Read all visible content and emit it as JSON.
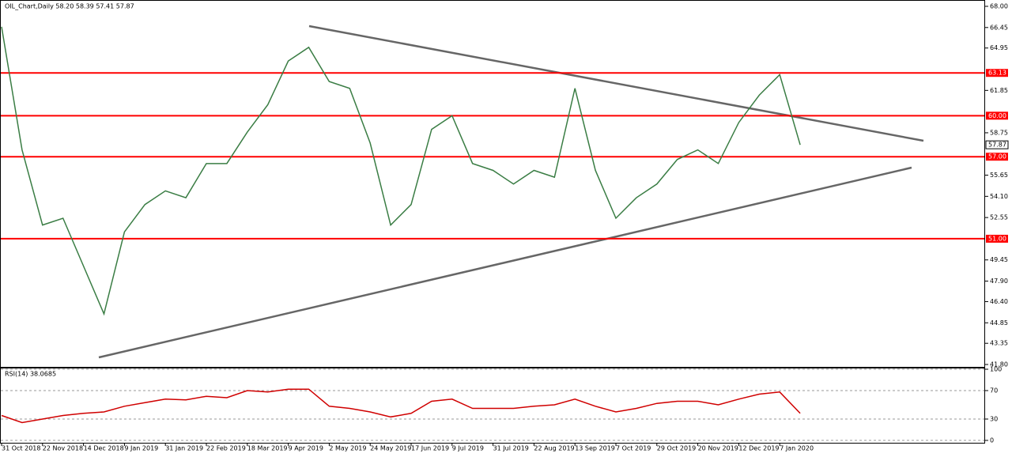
{
  "chart_data": [
    {
      "type": "line",
      "title": "OIL_Chart,Daily  58.20 58.39 57.41 57.87",
      "categories": [
        "31 Oct 2018",
        null,
        "22 Nov 2018",
        null,
        "14 Dec 2018",
        null,
        "9 Jan 2019",
        null,
        "31 Jan 2019",
        null,
        "22 Feb 2019",
        null,
        "18 Mar 2019",
        null,
        "9 Apr 2019",
        null,
        "2 May 2019",
        null,
        "24 May 2019",
        null,
        "17 Jun 2019",
        null,
        "9 Jul 2019",
        null,
        "31 Jul 2019",
        null,
        "22 Aug 2019",
        null,
        "13 Sep 2019",
        null,
        "7 Oct 2019",
        null,
        "29 Oct 2019",
        null,
        "20 Nov 2019",
        null,
        "12 Dec 2019",
        null,
        "7 Jan 2020",
        null
      ],
      "series": [
        {
          "color": "#3a7d44",
          "values": [
            66.5,
            57.5,
            52,
            52.5,
            49,
            45.5,
            51.5,
            53.5,
            54.5,
            54,
            56.5,
            56.5,
            58.8,
            60.8,
            64,
            65,
            62.5,
            62,
            58,
            52,
            53.5,
            59,
            60,
            56.5,
            56,
            55,
            56,
            55.5,
            62,
            56,
            52.5,
            54,
            55,
            56.8,
            57.5,
            56.5,
            59.5,
            61.5,
            63,
            57.87
          ]
        }
      ],
      "ylim": [
        41.8,
        68
      ],
      "yticks": [
        {
          "value": 68,
          "label": "68.00"
        },
        {
          "value": 66.45,
          "label": "66.45"
        },
        {
          "value": 64.95,
          "label": "64.95"
        },
        {
          "value": 61.85,
          "label": "61.85"
        },
        {
          "value": 58.75,
          "label": "58.75"
        },
        {
          "value": 55.65,
          "label": "55.65"
        },
        {
          "value": 54.1,
          "label": "54.10"
        },
        {
          "value": 52.55,
          "label": "52.55"
        },
        {
          "value": 49.45,
          "label": "49.45"
        },
        {
          "value": 47.9,
          "label": "47.90"
        },
        {
          "value": 46.4,
          "label": "46.40"
        },
        {
          "value": 44.85,
          "label": "44.85"
        },
        {
          "value": 43.35,
          "label": "43.35"
        },
        {
          "value": 41.8,
          "label": "41.80"
        }
      ],
      "levels": [
        {
          "value": 63.13,
          "label": "63.13"
        },
        {
          "value": 60,
          "label": "60.00"
        },
        {
          "value": 57,
          "label": "57.00"
        },
        {
          "value": 51,
          "label": "51.00"
        }
      ],
      "level_color": "#ff0000",
      "last_price": {
        "value": 57.87,
        "label": "57.87"
      }
    },
    {
      "type": "line",
      "title": "RSI(14) 38.0685",
      "series": [
        {
          "color": "#d00000",
          "values": [
            35,
            25,
            30,
            35,
            38,
            40,
            48,
            53,
            58,
            57,
            62,
            60,
            70,
            68,
            72,
            72,
            48,
            45,
            40,
            33,
            38,
            55,
            58,
            45,
            45,
            45,
            48,
            50,
            58,
            48,
            40,
            45,
            52,
            55,
            55,
            50,
            58,
            65,
            68,
            38.0685
          ]
        }
      ],
      "ylim": [
        0,
        100
      ],
      "yticks": [
        0,
        30,
        70,
        100
      ],
      "grid": true
    }
  ]
}
